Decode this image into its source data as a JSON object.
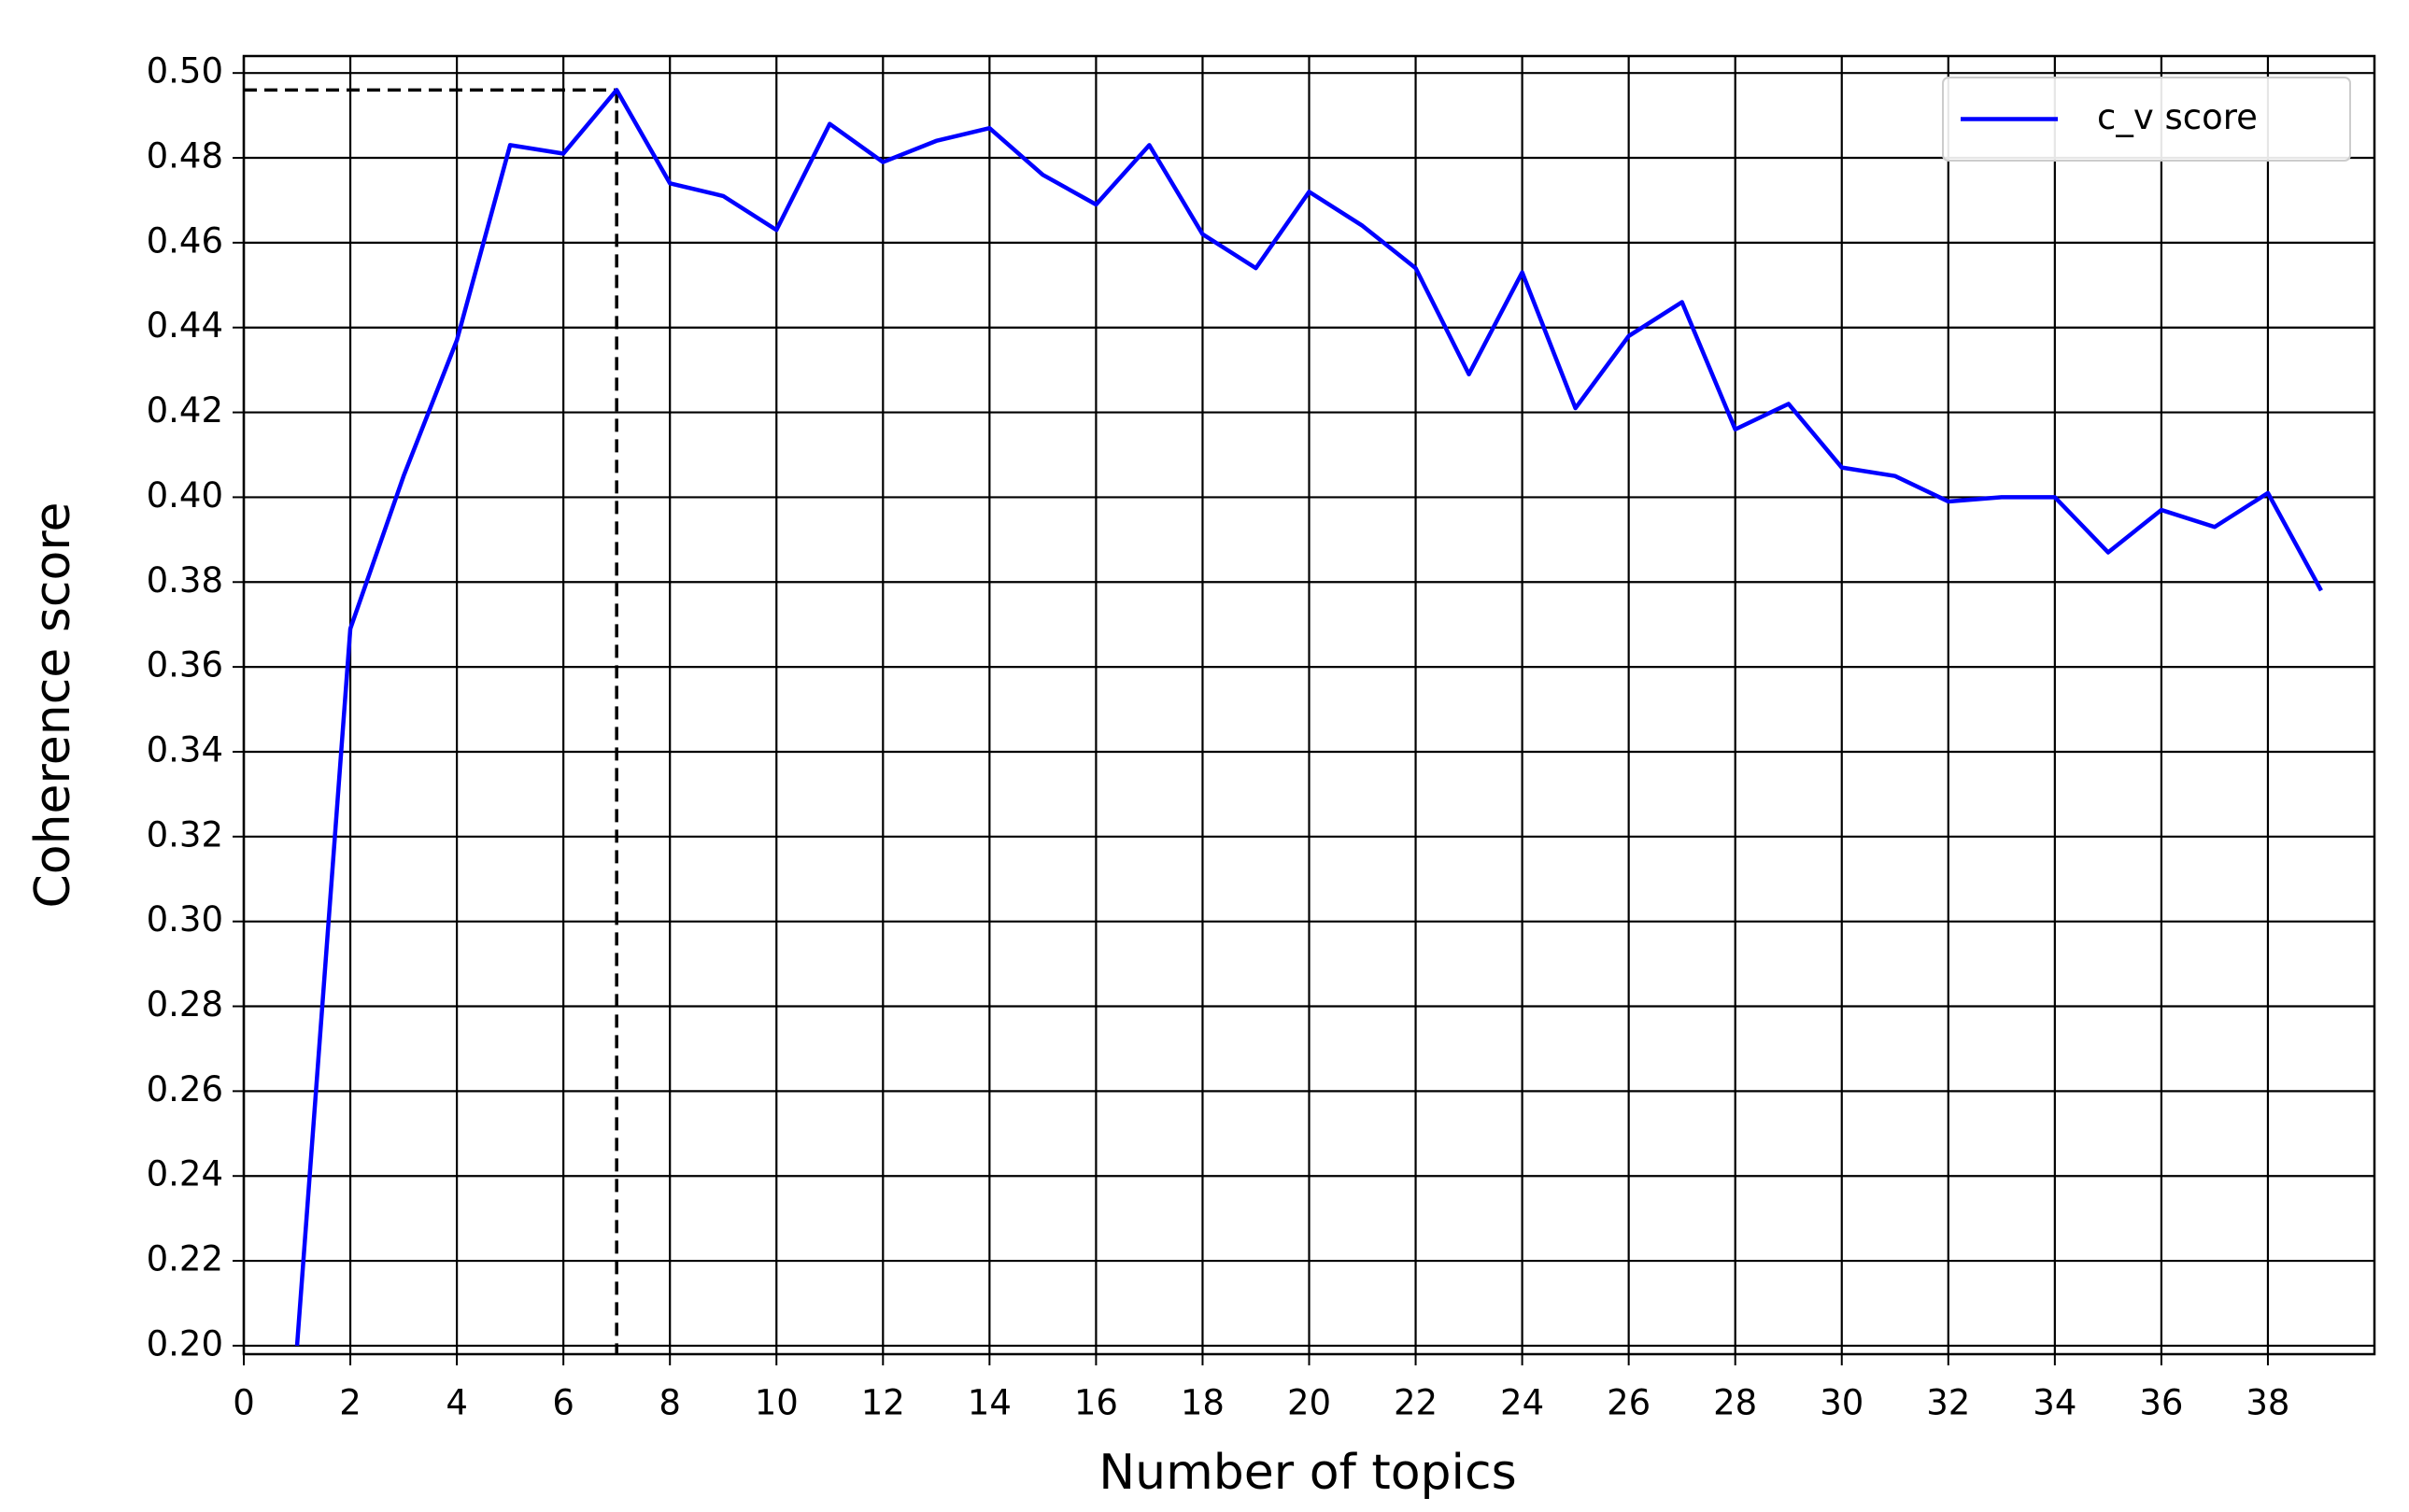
{
  "chart_data": {
    "type": "line",
    "x_label": "Number of topics",
    "y_label": "Coherence score",
    "x": [
      1,
      2,
      3,
      4,
      5,
      6,
      7,
      8,
      9,
      10,
      11,
      12,
      13,
      14,
      15,
      16,
      17,
      18,
      19,
      20,
      21,
      22,
      23,
      24,
      25,
      26,
      27,
      28,
      29,
      30,
      31,
      32,
      33,
      34,
      35,
      36,
      37,
      38,
      39
    ],
    "series": [
      {
        "name": "c_v score",
        "color": "#0000ff",
        "values": [
          0.2,
          0.369,
          0.405,
          0.437,
          0.483,
          0.481,
          0.496,
          0.474,
          0.471,
          0.463,
          0.488,
          0.479,
          0.484,
          0.487,
          0.476,
          0.469,
          0.483,
          0.462,
          0.454,
          0.472,
          0.464,
          0.454,
          0.429,
          0.453,
          0.421,
          0.438,
          0.446,
          0.416,
          0.422,
          0.407,
          0.405,
          0.399,
          0.4,
          0.4,
          0.387,
          0.397,
          0.393,
          0.401,
          0.378
        ]
      }
    ],
    "highlight_point": {
      "x": 7,
      "y": 0.496
    },
    "xlim": [
      0,
      40
    ],
    "xticks": [
      0,
      2,
      4,
      6,
      8,
      10,
      12,
      14,
      16,
      18,
      20,
      22,
      24,
      26,
      28,
      30,
      32,
      34,
      36,
      38
    ],
    "ylim": [
      0.198,
      0.504
    ],
    "yticks": [
      {
        "value": 0.2,
        "label": "0.20"
      },
      {
        "value": 0.22,
        "label": "0.22"
      },
      {
        "value": 0.24,
        "label": "0.24"
      },
      {
        "value": 0.26,
        "label": "0.26"
      },
      {
        "value": 0.28,
        "label": "0.28"
      },
      {
        "value": 0.3,
        "label": "0.30"
      },
      {
        "value": 0.32,
        "label": "0.32"
      },
      {
        "value": 0.34,
        "label": "0.34"
      },
      {
        "value": 0.36,
        "label": "0.36"
      },
      {
        "value": 0.38,
        "label": "0.38"
      },
      {
        "value": 0.4,
        "label": "0.40"
      },
      {
        "value": 0.42,
        "label": "0.42"
      },
      {
        "value": 0.44,
        "label": "0.44"
      },
      {
        "value": 0.46,
        "label": "0.46"
      },
      {
        "value": 0.48,
        "label": "0.48"
      },
      {
        "value": 0.5,
        "label": "0.50"
      }
    ],
    "grid": true,
    "legend": "upper right"
  }
}
